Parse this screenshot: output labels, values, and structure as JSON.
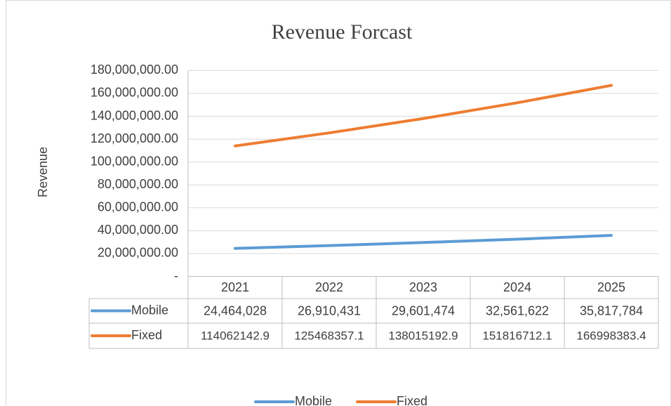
{
  "chart_data": {
    "type": "line",
    "title": "Revenue Forcast",
    "y_label": "Revenue",
    "categories": [
      "2021",
      "2022",
      "2023",
      "2024",
      "2025"
    ],
    "series": [
      {
        "name": "Mobile",
        "color": "#5b9bd5",
        "values": [
          24464028,
          26910431,
          29601474,
          32561622,
          35817784
        ],
        "value_labels": [
          "24,464,028",
          "26,910,431",
          "29,601,474",
          "32,561,622",
          "35,817,784"
        ]
      },
      {
        "name": "Fixed",
        "color": "#ed7d31",
        "values": [
          114062142.9,
          125468357.1,
          138015192.9,
          151816712.1,
          166998383.4
        ]
      }
    ],
    "ylim": [
      0,
      180000000
    ],
    "yticks": [
      {
        "value": 0,
        "label": "-"
      },
      {
        "value": 20000000,
        "label": "20,000,000.00"
      },
      {
        "value": 40000000,
        "label": "40,000,000.00"
      },
      {
        "value": 60000000,
        "label": "60,000,000.00"
      },
      {
        "value": 80000000,
        "label": "80,000,000.00"
      },
      {
        "value": 100000000,
        "label": "100,000,000.00"
      },
      {
        "value": 120000000,
        "label": "120,000,000.00"
      },
      {
        "value": 140000000,
        "label": "140,000,000.00"
      },
      {
        "value": 160000000,
        "label": "160,000,000.00"
      },
      {
        "value": 180000000,
        "label": "180,000,000.00"
      }
    ],
    "grid": true,
    "legend": "bottom"
  }
}
